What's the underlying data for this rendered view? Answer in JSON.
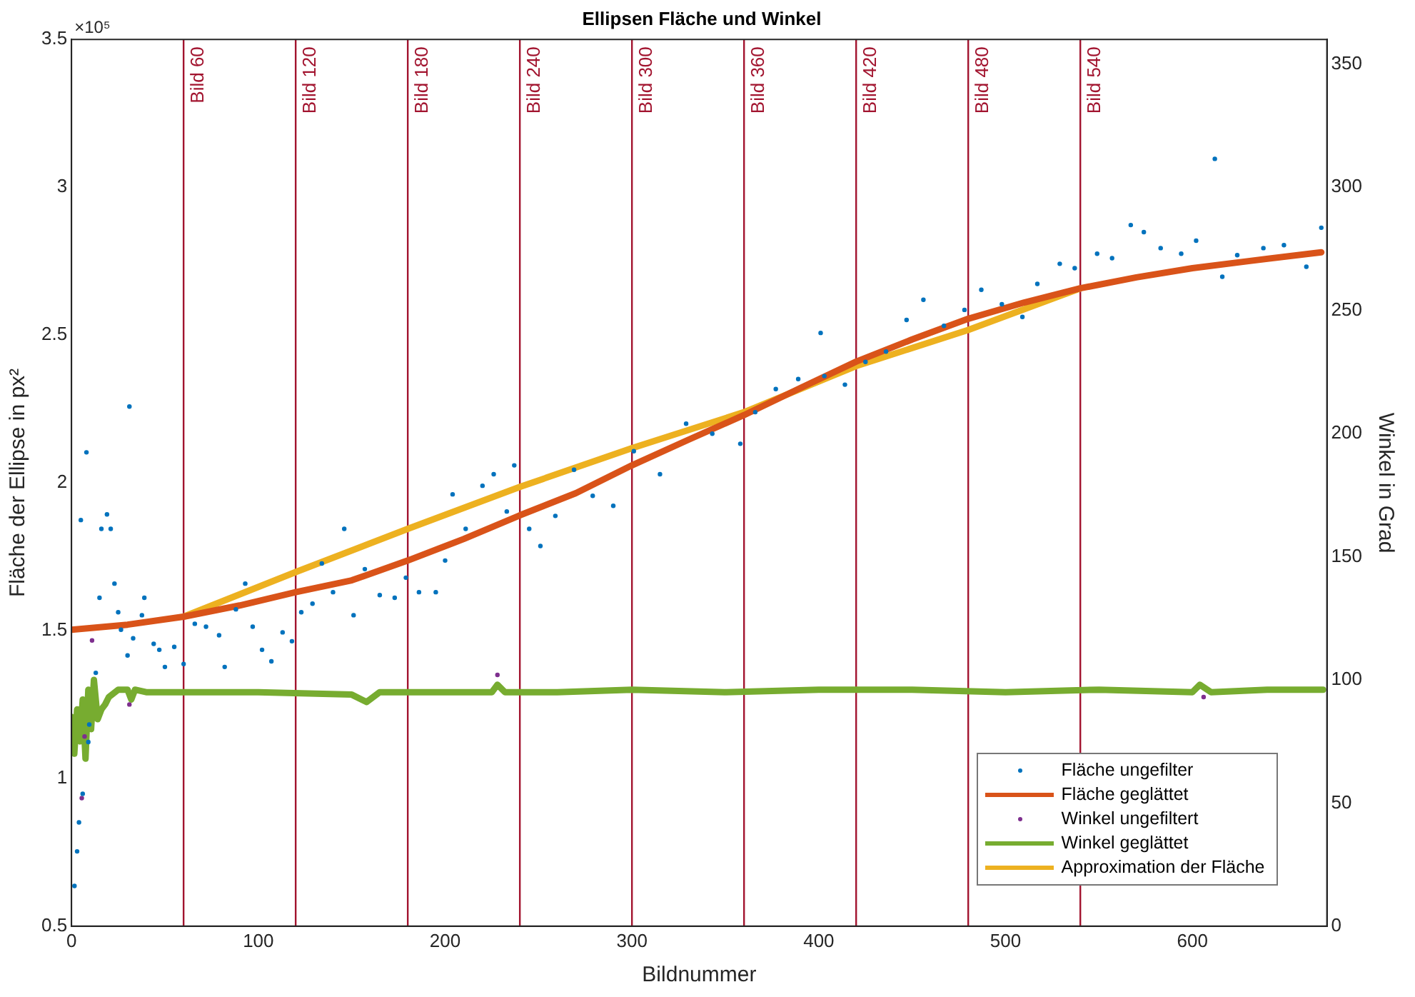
{
  "chart_data": {
    "type": "line",
    "title": "Ellipsen Fläche und Winkel",
    "xlabel": "Bildnummer",
    "ylabel": "Fläche der Ellipse in px²",
    "y2label": "Winkel in Grad",
    "annotations": [
      "×10⁵"
    ],
    "xlim": [
      0,
      672
    ],
    "xticks": [
      0,
      100,
      200,
      300,
      400,
      500,
      600
    ],
    "ylim": [
      0.5,
      3.5
    ],
    "yticks": [
      0.5,
      1,
      1.5,
      2,
      2.5,
      3,
      3.5
    ],
    "y2lim": [
      0,
      360
    ],
    "y2ticks": [
      0,
      50,
      100,
      150,
      200,
      250,
      300,
      350
    ],
    "grid": false,
    "legend": "bottom right",
    "ref_lines": [
      {
        "axis": "x",
        "value": 60,
        "label": "Bild 60",
        "color": "#a2142f"
      },
      {
        "axis": "x",
        "value": 120,
        "label": "Bild 120",
        "color": "#a2142f"
      },
      {
        "axis": "x",
        "value": 180,
        "label": "Bild 180",
        "color": "#a2142f"
      },
      {
        "axis": "x",
        "value": 240,
        "label": "Bild 240",
        "color": "#a2142f"
      },
      {
        "axis": "x",
        "value": 300,
        "label": "Bild 300",
        "color": "#a2142f"
      },
      {
        "axis": "x",
        "value": 360,
        "label": "Bild 360",
        "color": "#a2142f"
      },
      {
        "axis": "x",
        "value": 420,
        "label": "Bild 420",
        "color": "#a2142f"
      },
      {
        "axis": "x",
        "value": 480,
        "label": "Bild 480",
        "color": "#a2142f"
      },
      {
        "axis": "x",
        "value": 540,
        "label": "Bild 540",
        "color": "#a2142f"
      }
    ],
    "series": [
      {
        "name": "Fläche ungefilter",
        "type": "scatter",
        "marker": "circle",
        "color": "#0072bd",
        "x": [
          1.6,
          3,
          4,
          5,
          6,
          8,
          9,
          9.5,
          13,
          15,
          16,
          19,
          21,
          23,
          25,
          26.5,
          30,
          31,
          33,
          37.7,
          39,
          44,
          47,
          50,
          55,
          60,
          66,
          72,
          79,
          82,
          88,
          93,
          97,
          102,
          107,
          113,
          118,
          123,
          129,
          134,
          140,
          146,
          151,
          157,
          165,
          173,
          179,
          186,
          195,
          200,
          204,
          211,
          220,
          226,
          233,
          237,
          245,
          251,
          259,
          269,
          279,
          290,
          301,
          315,
          329,
          343,
          358,
          366,
          377,
          389,
          401,
          403,
          414,
          425,
          436,
          447,
          456,
          467,
          478,
          487,
          498,
          509,
          517,
          529,
          537,
          549,
          557,
          567,
          574,
          583,
          594,
          602,
          612,
          616,
          624,
          638,
          649,
          661,
          669
        ],
        "values": [
          0.636,
          0.753,
          0.851,
          1.874,
          0.948,
          2.103,
          1.123,
          1.182,
          1.357,
          1.611,
          1.844,
          1.893,
          1.844,
          1.659,
          1.562,
          1.503,
          1.416,
          2.258,
          1.474,
          1.552,
          1.611,
          1.455,
          1.435,
          1.377,
          1.445,
          1.387,
          1.523,
          1.513,
          1.484,
          1.377,
          1.572,
          1.659,
          1.513,
          1.435,
          1.396,
          1.494,
          1.464,
          1.562,
          1.591,
          1.727,
          1.63,
          1.844,
          1.552,
          1.708,
          1.62,
          1.611,
          1.679,
          1.63,
          1.63,
          1.737,
          1.961,
          1.844,
          1.99,
          2.029,
          1.903,
          2.059,
          1.844,
          1.786,
          1.888,
          2.044,
          1.956,
          1.922,
          2.107,
          2.029,
          2.2,
          2.166,
          2.132,
          2.239,
          2.317,
          2.351,
          2.507,
          2.361,
          2.332,
          2.409,
          2.444,
          2.551,
          2.619,
          2.531,
          2.585,
          2.653,
          2.604,
          2.561,
          2.673,
          2.741,
          2.726,
          2.775,
          2.76,
          2.872,
          2.848,
          2.794,
          2.775,
          2.819,
          3.096,
          2.697,
          2.77,
          2.794,
          2.804,
          2.731,
          2.863
        ]
      },
      {
        "name": "Fläche geglättet",
        "type": "line",
        "color": "#d95319",
        "x": [
          0,
          30,
          60,
          90,
          120,
          150,
          180,
          210,
          240,
          270,
          300,
          330,
          360,
          390,
          420,
          450,
          480,
          510,
          540,
          570,
          600,
          630,
          669
        ],
        "values": [
          1.503,
          1.52,
          1.547,
          1.585,
          1.63,
          1.67,
          1.737,
          1.81,
          1.89,
          1.965,
          2.059,
          2.145,
          2.229,
          2.32,
          2.41,
          2.485,
          2.555,
          2.61,
          2.658,
          2.695,
          2.726,
          2.75,
          2.78
        ]
      },
      {
        "name": "Winkel ungefiltert",
        "type": "scatter",
        "marker": "circle",
        "axis": "y2",
        "color": "#7e2f8e",
        "x": [
          5.5,
          7,
          11,
          31,
          228,
          606
        ],
        "values": [
          52,
          77,
          116,
          90,
          102,
          93
        ]
      },
      {
        "name": "Winkel geglättet",
        "type": "line",
        "axis": "y2",
        "color": "#77ac30",
        "x": [
          0,
          1.5,
          3,
          4.5,
          6,
          7.5,
          9,
          10.5,
          12,
          14,
          16,
          18,
          20,
          25,
          30,
          32,
          34,
          40,
          60,
          100,
          150,
          158,
          165,
          200,
          225,
          228,
          232,
          260,
          300,
          350,
          400,
          450,
          500,
          550,
          600,
          604,
          610,
          640,
          670
        ],
        "values": [
          85,
          70,
          88,
          75,
          92,
          68,
          96,
          80,
          100,
          84,
          88,
          90,
          93,
          96,
          96,
          92,
          96,
          95,
          95,
          95,
          94,
          91,
          95,
          95,
          95,
          98,
          95,
          95,
          96,
          95,
          96,
          96,
          95,
          96,
          95,
          98,
          95,
          96,
          96
        ]
      },
      {
        "name": "Approximation der Fläche",
        "type": "line",
        "color": "#edb120",
        "x": [
          60,
          120,
          180,
          240,
          300,
          360,
          420,
          480,
          540
        ],
        "values": [
          1.547,
          1.698,
          1.844,
          1.986,
          2.117,
          2.239,
          2.395,
          2.517,
          2.658
        ]
      }
    ]
  }
}
